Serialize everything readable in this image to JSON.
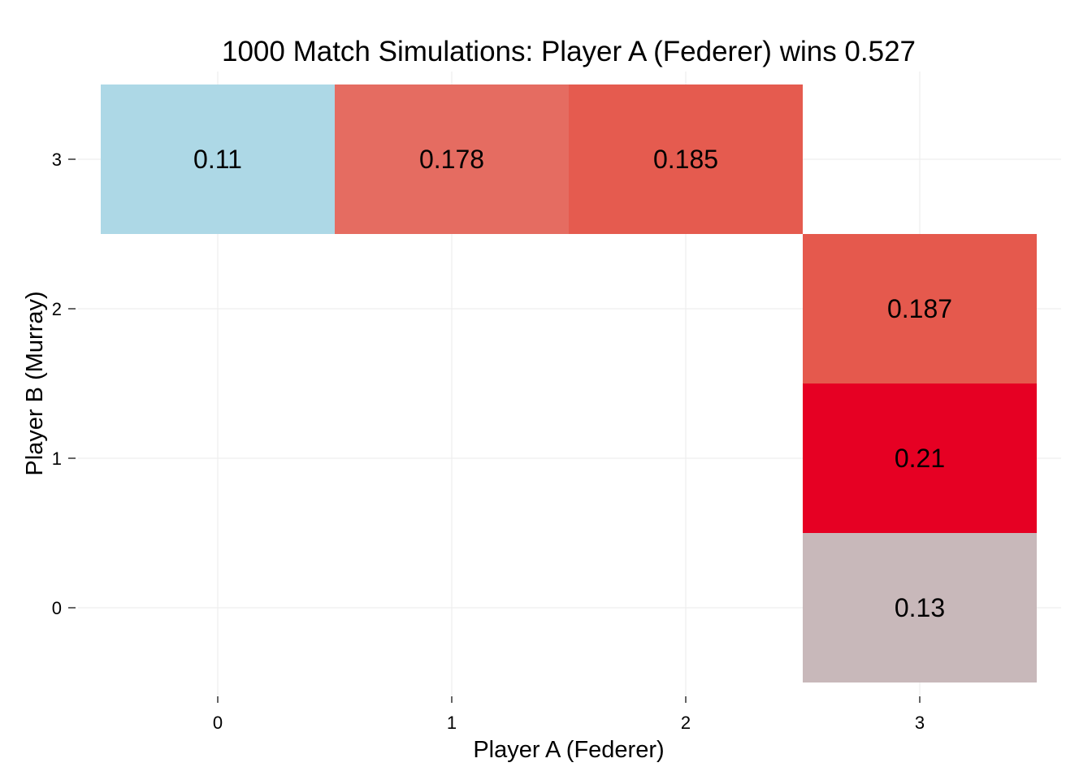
{
  "chart_data": {
    "type": "heatmap",
    "title": "1000 Match Simulations: Player A (Federer) wins 0.527",
    "xlabel": "Player A (Federer)",
    "ylabel": "Player B (Murray)",
    "x_ticks": [
      "0",
      "1",
      "2",
      "3"
    ],
    "y_ticks": [
      "0",
      "1",
      "2",
      "3"
    ],
    "xlim": [
      -0.5,
      3.5
    ],
    "ylim": [
      -0.5,
      3.5
    ],
    "grid": true,
    "cells": [
      {
        "x": 0,
        "y": 3,
        "value": 0.11,
        "label": "0.11",
        "color": "#add8e6"
      },
      {
        "x": 1,
        "y": 3,
        "value": 0.178,
        "label": "0.178",
        "color": "#e56c61"
      },
      {
        "x": 2,
        "y": 3,
        "value": 0.185,
        "label": "0.185",
        "color": "#e55b4f"
      },
      {
        "x": 3,
        "y": 2,
        "value": 0.187,
        "label": "0.187",
        "color": "#e5594d"
      },
      {
        "x": 3,
        "y": 1,
        "value": 0.21,
        "label": "0.21",
        "color": "#e60023"
      },
      {
        "x": 3,
        "y": 0,
        "value": 0.13,
        "label": "0.13",
        "color": "#c8b8ba"
      }
    ]
  }
}
